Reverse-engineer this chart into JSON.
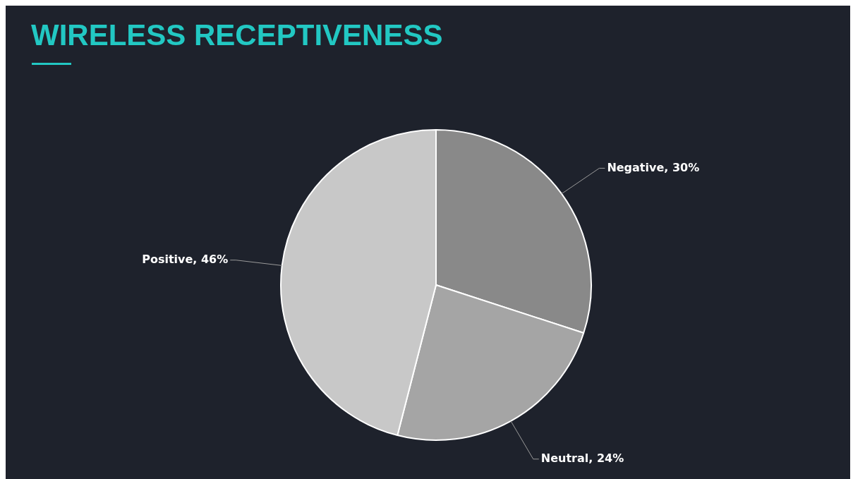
{
  "chart_data": {
    "type": "pie",
    "title": "WIRELESS RECEPTIVENESS",
    "categories": [
      "Negative",
      "Neutral",
      "Positive"
    ],
    "values": [
      30,
      24,
      46
    ],
    "colors": [
      "#898989",
      "#a5a5a5",
      "#c8c8c8"
    ],
    "value_labels": [
      "30%",
      "24%",
      "46%"
    ],
    "legend": false
  }
}
